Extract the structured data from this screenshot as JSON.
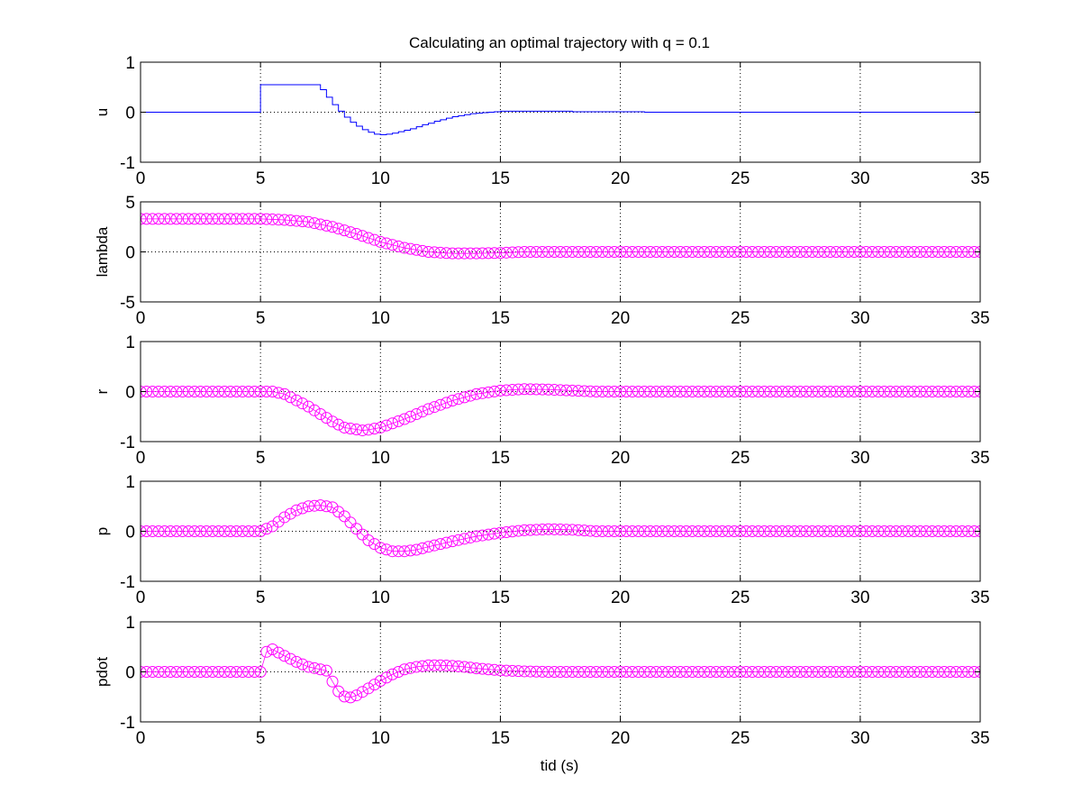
{
  "figure": {
    "title": "Calculating an optimal trajectory with q = 0.1",
    "xlabel": "tid (s)"
  },
  "colors": {
    "u_line": "#0000ff",
    "markers": "#ff00ff",
    "axes": "#000000",
    "grid": "#000000",
    "background": "#ffffff"
  },
  "chart_data": [
    {
      "type": "line",
      "style": "stairs",
      "ylabel": "u",
      "xlim": [
        0,
        35
      ],
      "ylim": [
        -1,
        1
      ],
      "xticks": [
        0,
        5,
        10,
        15,
        20,
        25,
        30,
        35
      ],
      "yticks": [
        -1,
        0,
        1
      ],
      "grid": true,
      "series": [
        {
          "x": [
            0,
            5,
            7.5,
            7.75,
            8,
            8.25,
            8.5,
            8.75,
            9,
            9.25,
            9.5,
            9.75,
            10,
            10.25,
            10.5,
            10.75,
            11,
            11.25,
            11.5,
            11.75,
            12,
            12.25,
            12.5,
            12.75,
            13,
            13.25,
            13.5,
            13.75,
            14,
            14.25,
            14.5,
            14.75,
            15,
            15.25,
            15.5,
            18,
            21,
            35
          ],
          "y": [
            0,
            0.55,
            0.45,
            0.3,
            0.15,
            0.02,
            -0.1,
            -0.2,
            -0.28,
            -0.35,
            -0.4,
            -0.44,
            -0.45,
            -0.44,
            -0.42,
            -0.39,
            -0.36,
            -0.33,
            -0.29,
            -0.25,
            -0.22,
            -0.18,
            -0.15,
            -0.12,
            -0.09,
            -0.07,
            -0.05,
            -0.03,
            -0.02,
            -0.01,
            0,
            0.01,
            0.02,
            0.02,
            0.02,
            0.01,
            0,
            0
          ]
        }
      ]
    },
    {
      "type": "scatter",
      "marker": "circle",
      "ylabel": "lambda",
      "xlim": [
        0,
        35
      ],
      "ylim": [
        -5,
        5
      ],
      "xticks": [
        0,
        5,
        10,
        15,
        20,
        25,
        30,
        35
      ],
      "yticks": [
        -5,
        0,
        5
      ],
      "grid": true,
      "sample_step": 0.25,
      "series": [
        {
          "x": [
            0,
            5,
            6,
            7,
            8,
            9,
            10,
            11,
            12,
            13,
            14,
            15,
            16,
            35
          ],
          "y": [
            3.3,
            3.3,
            3.2,
            3.0,
            2.5,
            1.8,
            1.0,
            0.4,
            0.0,
            -0.15,
            -0.15,
            -0.1,
            0.0,
            0.0
          ]
        }
      ]
    },
    {
      "type": "scatter",
      "marker": "circle",
      "ylabel": "r",
      "xlim": [
        0,
        35
      ],
      "ylim": [
        -1,
        1
      ],
      "xticks": [
        0,
        5,
        10,
        15,
        20,
        25,
        30,
        35
      ],
      "yticks": [
        -1,
        0,
        1
      ],
      "grid": true,
      "sample_step": 0.25,
      "series": [
        {
          "x": [
            0,
            5.5,
            6,
            7,
            8,
            8.5,
            9.3,
            10,
            11,
            12,
            13,
            14,
            15,
            16,
            17,
            18,
            19,
            35
          ],
          "y": [
            0,
            0,
            -0.05,
            -0.3,
            -0.6,
            -0.72,
            -0.78,
            -0.72,
            -0.55,
            -0.35,
            -0.18,
            -0.05,
            0.02,
            0.05,
            0.04,
            0.02,
            0,
            0
          ]
        }
      ]
    },
    {
      "type": "scatter",
      "marker": "circle",
      "ylabel": "p",
      "xlim": [
        0,
        35
      ],
      "ylim": [
        -1,
        1
      ],
      "xticks": [
        0,
        5,
        10,
        15,
        20,
        25,
        30,
        35
      ],
      "yticks": [
        -1,
        0,
        1
      ],
      "grid": true,
      "sample_step": 0.25,
      "series": [
        {
          "x": [
            0,
            5,
            5.5,
            6,
            6.5,
            7,
            7.5,
            8,
            8.5,
            9,
            9.5,
            10,
            10.5,
            11,
            11.5,
            12,
            13,
            14,
            15,
            16,
            17,
            18,
            19,
            35
          ],
          "y": [
            0,
            0,
            0.1,
            0.28,
            0.42,
            0.5,
            0.52,
            0.48,
            0.3,
            0.05,
            -0.18,
            -0.33,
            -0.4,
            -0.4,
            -0.37,
            -0.31,
            -0.2,
            -0.1,
            -0.03,
            0.02,
            0.04,
            0.03,
            0,
            0
          ]
        }
      ]
    },
    {
      "type": "scatter",
      "marker": "circle",
      "ylabel": "pdot",
      "xlim": [
        0,
        35
      ],
      "ylim": [
        -1,
        1
      ],
      "xticks": [
        0,
        5,
        10,
        15,
        20,
        25,
        30,
        35
      ],
      "yticks": [
        -1,
        0,
        1
      ],
      "grid": true,
      "sample_step": 0.25,
      "series": [
        {
          "x": [
            0,
            5,
            5.25,
            5.5,
            6,
            6.5,
            7,
            7.5,
            7.8,
            8.1,
            8.4,
            8.7,
            9,
            9.5,
            10,
            10.5,
            11,
            11.5,
            12,
            12.5,
            13,
            13.5,
            14,
            15,
            16,
            17,
            35
          ],
          "y": [
            0,
            0,
            0.4,
            0.45,
            0.32,
            0.2,
            0.1,
            0.05,
            0.02,
            -0.3,
            -0.48,
            -0.52,
            -0.47,
            -0.33,
            -0.18,
            -0.05,
            0.05,
            0.1,
            0.13,
            0.13,
            0.12,
            0.1,
            0.07,
            0.03,
            0.01,
            0,
            0
          ]
        }
      ]
    }
  ]
}
